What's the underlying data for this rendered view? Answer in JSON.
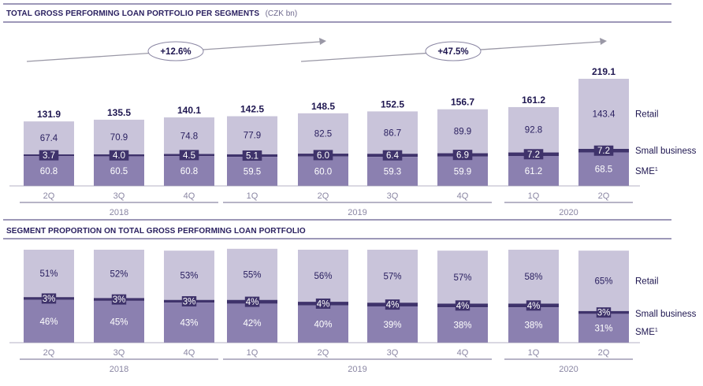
{
  "colors": {
    "retail": "#c9c4da",
    "small_business": "#3f336b",
    "sme": "#8b80b0",
    "title": "#2a2060",
    "rule": "#3b3270",
    "axis": "#8a86a3",
    "arrow": "#9a98a6"
  },
  "chart_data": [
    {
      "type": "bar",
      "stacked": true,
      "title": "TOTAL GROSS PERFORMING LOAN PORTFOLIO PER SEGMENTS",
      "subtitle": "(CZK bn)",
      "categories": [
        "2Q",
        "3Q",
        "4Q",
        "1Q",
        "2Q",
        "3Q",
        "4Q",
        "1Q",
        "2Q"
      ],
      "year_groups": [
        {
          "label": "2018",
          "start": 0,
          "end": 2
        },
        {
          "label": "2019",
          "start": 3,
          "end": 6
        },
        {
          "label": "2020",
          "start": 7,
          "end": 8
        }
      ],
      "totals": [
        "131.9",
        "135.5",
        "140.1",
        "142.5",
        "148.5",
        "152.5",
        "156.7",
        "161.2",
        "219.1"
      ],
      "series": [
        {
          "name": "SME",
          "sup": "1",
          "values": [
            60.8,
            60.5,
            60.8,
            59.5,
            60.0,
            59.3,
            59.9,
            61.2,
            68.5
          ],
          "labels": [
            "60.8",
            "60.5",
            "60.8",
            "59.5",
            "60.0",
            "59.3",
            "59.9",
            "61.2",
            "68.5"
          ]
        },
        {
          "name": "Small business",
          "values": [
            3.7,
            4.0,
            4.5,
            5.1,
            6.0,
            6.4,
            6.9,
            7.2,
            7.2
          ],
          "labels": [
            "3.7",
            "4.0",
            "4.5",
            "5.1",
            "6.0",
            "6.4",
            "6.9",
            "7.2",
            "7.2"
          ]
        },
        {
          "name": "Retail",
          "values": [
            67.4,
            70.9,
            74.8,
            77.9,
            82.5,
            86.7,
            89.9,
            92.8,
            143.4
          ],
          "labels": [
            "67.4",
            "70.9",
            "74.8",
            "77.9",
            "82.5",
            "86.7",
            "89.9",
            "92.8",
            "143.4"
          ]
        }
      ],
      "annotations": [
        {
          "text": "+12.6%",
          "from": 0,
          "to": 4
        },
        {
          "text": "+47.5%",
          "from": 4,
          "to": 8
        }
      ],
      "ylim": [
        0,
        219.1
      ]
    },
    {
      "type": "bar",
      "stacked": true,
      "percent": true,
      "title": "SEGMENT PROPORTION ON TOTAL GROSS PERFORMING LOAN PORTFOLIO",
      "subtitle": "",
      "categories": [
        "2Q",
        "3Q",
        "4Q",
        "1Q",
        "2Q",
        "3Q",
        "4Q",
        "1Q",
        "2Q"
      ],
      "year_groups": [
        {
          "label": "2018",
          "start": 0,
          "end": 2
        },
        {
          "label": "2019",
          "start": 3,
          "end": 6
        },
        {
          "label": "2020",
          "start": 7,
          "end": 8
        }
      ],
      "series": [
        {
          "name": "SME",
          "sup": "1",
          "values": [
            46,
            45,
            43,
            42,
            40,
            39,
            38,
            38,
            31
          ],
          "labels": [
            "46%",
            "45%",
            "43%",
            "42%",
            "40%",
            "39%",
            "38%",
            "38%",
            "31%"
          ]
        },
        {
          "name": "Small business",
          "values": [
            3,
            3,
            3,
            4,
            4,
            4,
            4,
            4,
            3
          ],
          "labels": [
            "3%",
            "3%",
            "3%",
            "4%",
            "4%",
            "4%",
            "4%",
            "4%",
            "3%"
          ]
        },
        {
          "name": "Retail",
          "values": [
            51,
            52,
            53,
            55,
            56,
            57,
            57,
            58,
            65
          ],
          "labels": [
            "51%",
            "52%",
            "53%",
            "55%",
            "56%",
            "57%",
            "57%",
            "58%",
            "65%"
          ]
        }
      ],
      "ylim": [
        0,
        100
      ]
    }
  ]
}
